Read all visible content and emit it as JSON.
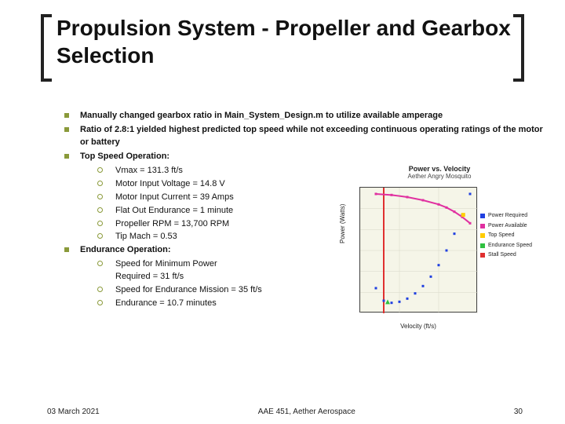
{
  "title": "Propulsion System - Propeller and Gearbox Selection",
  "bullets": [
    "Manually changed gearbox ratio in Main_System_Design.m to utilize available amperage",
    "Ratio of 2.8:1 yielded highest predicted top speed while not exceeding continuous operating ratings of the motor or battery",
    "Top Speed Operation:",
    "Endurance Operation:"
  ],
  "topspeed_items": [
    "Vmax = 131.3 ft/s",
    "Motor Input Voltage = 14.8 V",
    "Motor Input Current = 39 Amps",
    "Flat Out Endurance = 1 minute",
    "Propeller RPM = 13,700 RPM",
    "Tip Mach = 0.53"
  ],
  "endurance_items": [
    "Speed for Minimum Power Required = 31 ft/s",
    "Speed for Endurance Mission = 35 ft/s",
    "Endurance = 10.7 minutes"
  ],
  "footer": {
    "date": "03 March 2021",
    "center": "AAE 451, Aether Aerospace",
    "page": "30"
  },
  "chart": {
    "title": "Power vs. Velocity",
    "subtitle": "Aether Angry Mosquito",
    "ylabel": "Power (Watts)",
    "xlabel": "Velocity (ft/s)",
    "xlim": [
      0,
      150
    ],
    "ylim": [
      0,
      600
    ],
    "xtick_step": 50,
    "ytick_step": 100,
    "background_color": "#f5f5e8",
    "grid_color": "#d8d8c8",
    "legend": [
      {
        "label": "Power Required",
        "color": "#2040e0",
        "marker": "square"
      },
      {
        "label": "Power Available",
        "color": "#e030a0",
        "marker": "square"
      },
      {
        "label": "Top Speed",
        "color": "#ffcc00",
        "marker": "square"
      },
      {
        "label": "Endurance Speed",
        "color": "#30c040",
        "marker": "triangle"
      },
      {
        "label": "Stall Speed",
        "color": "#e03030",
        "marker": "line"
      }
    ],
    "series": {
      "power_required": {
        "color": "#2040e0",
        "x": [
          20,
          30,
          40,
          50,
          60,
          70,
          80,
          90,
          100,
          110,
          120,
          130,
          140
        ],
        "y": [
          120,
          60,
          50,
          55,
          70,
          95,
          130,
          175,
          230,
          300,
          380,
          470,
          570
        ]
      },
      "power_available": {
        "color": "#e030a0",
        "x": [
          20,
          40,
          60,
          80,
          100,
          110,
          120,
          130,
          140
        ],
        "y": [
          570,
          565,
          555,
          540,
          520,
          505,
          485,
          460,
          430
        ]
      },
      "top_speed": {
        "color": "#ffcc00",
        "x": 131.3,
        "y": 470
      },
      "endurance_speed": {
        "color": "#30c040",
        "x": 35,
        "y": 55
      },
      "stall_speed": {
        "color": "#e03030",
        "x": 30,
        "ymin": 0,
        "ymax": 600
      }
    }
  },
  "bullet_color": "#8a9a3a"
}
